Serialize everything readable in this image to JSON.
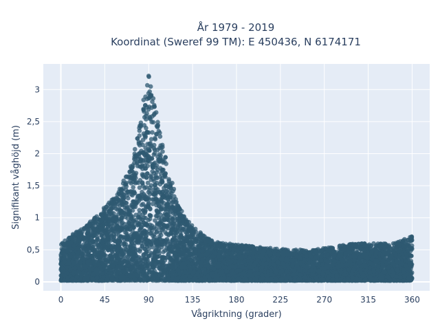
{
  "chart_data": {
    "type": "scatter",
    "title": [
      "År 1979 - 2019",
      "Koordinat (Sweref 99 TM): E 450436, N 6174171"
    ],
    "xlabel": "Vågriktning (grader)",
    "ylabel": "Signifikant våghöjd (m)",
    "xlim": [
      -18,
      378
    ],
    "ylim": [
      -0.14,
      3.4
    ],
    "xticks": [
      0,
      45,
      90,
      135,
      180,
      225,
      270,
      315,
      360
    ],
    "xtick_labels": [
      "0",
      "45",
      "90",
      "135",
      "180",
      "225",
      "270",
      "315",
      "360"
    ],
    "yticks": [
      0,
      0.5,
      1,
      1.5,
      2,
      2.5,
      3
    ],
    "ytick_labels": [
      "0",
      "0,5",
      "1",
      "1,5",
      "2",
      "2,5",
      "3"
    ],
    "grid": true,
    "marker_color": "#2f5a72",
    "plot_background": "#e5ecf6",
    "envelope": {
      "x": [
        0,
        10,
        20,
        30,
        40,
        50,
        60,
        70,
        75,
        80,
        85,
        88,
        90,
        92,
        95,
        100,
        105,
        110,
        115,
        120,
        130,
        140,
        150,
        160,
        180,
        200,
        220,
        240,
        260,
        280,
        300,
        320,
        340,
        355,
        360
      ],
      "max_y": [
        0.6,
        0.72,
        0.82,
        0.95,
        1.1,
        1.25,
        1.45,
        1.75,
        2.0,
        2.4,
        2.9,
        3.1,
        3.25,
        3.1,
        2.85,
        2.5,
        2.1,
        1.75,
        1.5,
        1.2,
        0.95,
        0.8,
        0.7,
        0.62,
        0.58,
        0.55,
        0.52,
        0.5,
        0.5,
        0.55,
        0.6,
        0.6,
        0.6,
        0.68,
        0.72
      ],
      "min_y": [
        0.02,
        0.02,
        0.02,
        0.02,
        0.02,
        0.02,
        0.02,
        0.02,
        0.02,
        0.02,
        0.02,
        0.02,
        0.02,
        0.02,
        0.02,
        0.02,
        0.02,
        0.02,
        0.02,
        0.02,
        0.02,
        0.02,
        0.02,
        0.02,
        0.02,
        0.02,
        0.02,
        0.02,
        0.02,
        0.02,
        0.02,
        0.02,
        0.02,
        0.02,
        0.02
      ]
    }
  }
}
